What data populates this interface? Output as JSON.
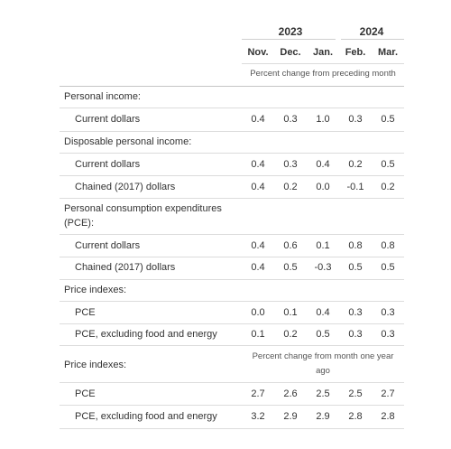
{
  "header": {
    "years": [
      "2023",
      "2024"
    ],
    "months": [
      "Nov.",
      "Dec.",
      "Jan.",
      "Feb.",
      "Mar."
    ],
    "note_monthly": "Percent change from preceding month",
    "note_yearly": "Percent change from month one year ago"
  },
  "rows": [
    {
      "label": "Personal income:",
      "values": []
    },
    {
      "label": "Current dollars",
      "values": [
        "0.4",
        "0.3",
        "1.0",
        "0.3",
        "0.5"
      ]
    },
    {
      "label": "Disposable personal income:",
      "values": []
    },
    {
      "label": "Current dollars",
      "values": [
        "0.4",
        "0.3",
        "0.4",
        "0.2",
        "0.5"
      ]
    },
    {
      "label": "Chained (2017) dollars",
      "values": [
        "0.4",
        "0.2",
        "0.0",
        "-0.1",
        "0.2"
      ]
    },
    {
      "label": "Personal consumption expenditures (PCE):",
      "values": []
    },
    {
      "label": "Current dollars",
      "values": [
        "0.4",
        "0.6",
        "0.1",
        "0.8",
        "0.8"
      ]
    },
    {
      "label": "Chained (2017) dollars",
      "values": [
        "0.4",
        "0.5",
        "-0.3",
        "0.5",
        "0.5"
      ]
    },
    {
      "label": "Price indexes:",
      "values": []
    },
    {
      "label": "PCE",
      "values": [
        "0.0",
        "0.1",
        "0.4",
        "0.3",
        "0.3"
      ]
    },
    {
      "label": "PCE, excluding food and energy",
      "values": [
        "0.1",
        "0.2",
        "0.5",
        "0.3",
        "0.3"
      ]
    },
    {
      "label": "Price indexes:",
      "values": []
    },
    {
      "label": "PCE",
      "values": [
        "2.7",
        "2.6",
        "2.5",
        "2.5",
        "2.7"
      ]
    },
    {
      "label": "PCE, excluding food and energy",
      "values": [
        "3.2",
        "2.9",
        "2.9",
        "2.8",
        "2.8"
      ]
    }
  ]
}
